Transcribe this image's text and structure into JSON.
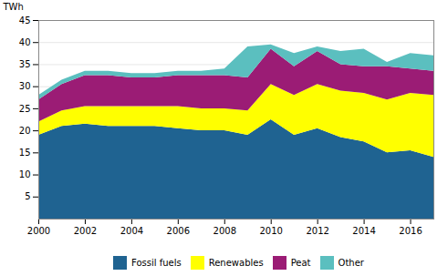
{
  "chart_data": {
    "type": "area",
    "stacked": true,
    "x": [
      2000,
      2001,
      2002,
      2003,
      2004,
      2005,
      2006,
      2007,
      2008,
      2009,
      2010,
      2011,
      2012,
      2013,
      2014,
      2015,
      2016,
      2017
    ],
    "series": [
      {
        "name": "Fossil fuels",
        "color": "#1f6391",
        "values": [
          19.0,
          21.0,
          21.5,
          21.0,
          21.0,
          21.0,
          20.5,
          20.0,
          20.0,
          19.0,
          22.5,
          19.0,
          20.5,
          18.5,
          17.5,
          15.0,
          15.5,
          14.0
        ]
      },
      {
        "name": "Renewables",
        "color": "#ffff00",
        "values": [
          3.0,
          3.5,
          4.0,
          4.5,
          4.5,
          4.5,
          5.0,
          5.0,
          5.0,
          5.5,
          8.0,
          9.0,
          10.0,
          10.5,
          11.0,
          12.0,
          13.0,
          14.0
        ]
      },
      {
        "name": "Peat",
        "color": "#9b1c75",
        "values": [
          5.0,
          6.0,
          7.0,
          7.0,
          6.5,
          6.5,
          7.0,
          7.5,
          7.5,
          7.5,
          8.0,
          6.5,
          7.5,
          6.0,
          6.0,
          7.5,
          5.5,
          5.5
        ]
      },
      {
        "name": "Other",
        "color": "#5bbfbf",
        "values": [
          1.0,
          1.0,
          1.0,
          1.0,
          1.0,
          1.0,
          1.0,
          1.0,
          1.5,
          7.0,
          1.0,
          3.0,
          1.0,
          3.0,
          4.0,
          1.0,
          3.5,
          3.5
        ]
      }
    ],
    "ylabel": "TWh",
    "xlim": [
      2000,
      2017
    ],
    "xticks": [
      2000,
      2002,
      2004,
      2006,
      2008,
      2010,
      2012,
      2014,
      2016
    ],
    "ylim": [
      0,
      45
    ],
    "yticks": [
      5,
      10,
      15,
      20,
      25,
      30,
      35,
      40,
      45
    ],
    "grid": true,
    "legend": "bottom"
  }
}
